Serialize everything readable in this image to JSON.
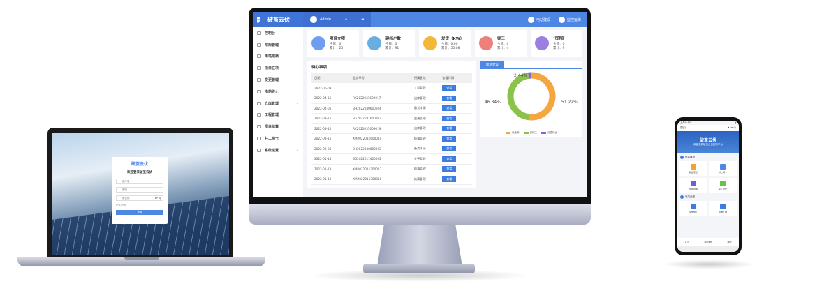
{
  "brand": {
    "name": "破茧云伏",
    "pinyin": "Po Jian Yun Fu"
  },
  "desktop": {
    "header": {
      "user": "Admin",
      "right": [
        {
          "label": "电站建设",
          "icon": "lightning-icon"
        },
        {
          "label": "监控运维",
          "icon": "wrench-icon"
        }
      ]
    },
    "sidebar": [
      {
        "label": "控制台"
      },
      {
        "label": "常规管理",
        "expand": true
      },
      {
        "label": "电站建档"
      },
      {
        "label": "项目立项"
      },
      {
        "label": "变更管理"
      },
      {
        "label": "电站终止"
      },
      {
        "label": "仓库管理",
        "expand": true
      },
      {
        "label": "工程管理"
      },
      {
        "label": "项目结算"
      },
      {
        "label": "并二两卡"
      },
      {
        "label": "系统设置",
        "expand": true
      }
    ],
    "cards": [
      {
        "title": "项目立项",
        "today": "今日：0",
        "total": "累计：25",
        "color": "#6f9ef0"
      },
      {
        "title": "建档户数",
        "today": "今日：0",
        "total": "累计：91",
        "color": "#6aaee0"
      },
      {
        "title": "发货（KW）",
        "today": "今日：0.00",
        "total": "累计：55.08",
        "color": "#f3b73a"
      },
      {
        "title": "完工",
        "today": "今日：0",
        "total": "累计：4",
        "color": "#ef7f7a"
      },
      {
        "title": "代理商",
        "today": "今日：0",
        "total": "累计：9",
        "color": "#9b7fe0"
      }
    ],
    "todo": {
      "title": "待办事项",
      "columns": [
        "日期",
        "业务单号",
        "所属板块",
        "查看详情"
      ],
      "view_label": "查看",
      "rows": [
        [
          "2022-06-09",
          "",
          "工程管理"
        ],
        [
          "2022-04-16",
          "RK2022031609017",
          "出库管理"
        ],
        [
          "2022-04-06",
          "BH2022040600004",
          "备货申请"
        ],
        [
          "2022-03-16",
          "BG2022031600003",
          "变更管理"
        ],
        [
          "2022-03-16",
          "RK2022031609019",
          "出库管理"
        ],
        [
          "2022-03-16",
          "XM2022031600010",
          "结算管理"
        ],
        [
          "2022-03-08",
          "BH2022030800002",
          "备货申请"
        ],
        [
          "2022-01-14",
          "BG2022011400002",
          "变更管理"
        ],
        [
          "2022-01-13",
          "XM2022011300023",
          "结算管理"
        ],
        [
          "2022-01-12",
          "XM2022011300018",
          "结算管理"
        ]
      ]
    },
    "chart_data": {
      "type": "pie",
      "tab": "电站建设",
      "series": [
        {
          "name": "已备案",
          "value": 51.22,
          "label": "51.22%",
          "color": "#f4a640"
        },
        {
          "name": "已完工",
          "value": 46.34,
          "label": "46.34%",
          "color": "#8bc34a"
        },
        {
          "name": "已建转运",
          "value": 2.44,
          "label": "2.44%",
          "color": "#8e5ee0"
        }
      ],
      "legend": "bottom",
      "donut": true
    }
  },
  "laptop": {
    "welcome": "欢迎登录破茧云伏",
    "username_ph": "用户名",
    "password_ph": "密码",
    "captcha_ph": "验证码",
    "captcha": "cP ky",
    "remember": "记住密码",
    "login": "登录"
  },
  "phone": {
    "status_time": "上午9:40",
    "title": "首页",
    "banner_title": "破茧云伏",
    "banner_sub": "欢迎来到破茧云伏服务平台",
    "sections": [
      {
        "title": "电站建设",
        "items": [
          {
            "label": "踏勘登记",
            "color": "#f4a22e"
          },
          {
            "label": "并二两卡",
            "color": "#4e86e4"
          },
          {
            "label": "现场勘测",
            "color": "#6a5fd8"
          },
          {
            "label": "完工登记",
            "color": "#6cbf4a"
          }
        ]
      },
      {
        "title": "电站运维",
        "items": [
          {
            "label": "运维施工",
            "color": "#3e7de0"
          },
          {
            "label": "运维工单",
            "color": "#3e7de0"
          }
        ]
      }
    ],
    "tabs": [
      "首页",
      "消息通知",
      "我的"
    ]
  }
}
